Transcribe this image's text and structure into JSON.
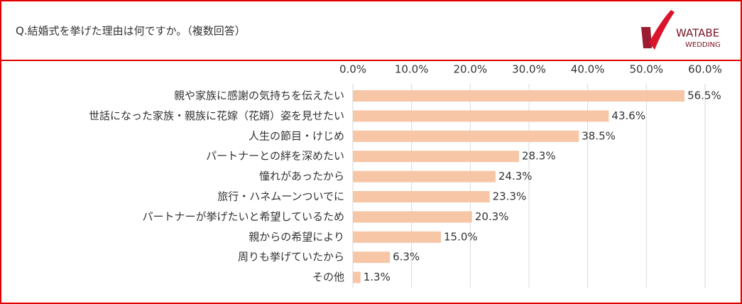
{
  "chart_data": {
    "type": "hbar",
    "title": "Q.結婚式を挙げた理由は何ですか。（複数回答）",
    "logo_lines": [
      "WATABE",
      "WEDDING"
    ],
    "categories": [
      "親や家族に感謝の気持ちを伝えたい",
      "世話になった家族・親族に花嫁（花婿）姿を見せたい",
      "人生の節目・けじめ",
      "パートナーとの絆を深めたい",
      "憧れがあったから",
      "旅行・ハネムーンついでに",
      "パートナーが挙げたいと希望しているため",
      "親からの希望により",
      "周りも挙げていたから",
      "その他"
    ],
    "values": [
      56.5,
      43.6,
      38.5,
      28.3,
      24.3,
      23.3,
      20.3,
      15.0,
      6.3,
      1.3
    ],
    "value_labels": [
      "56.5%",
      "43.6%",
      "38.5%",
      "28.3%",
      "24.3%",
      "23.3%",
      "20.3%",
      "15.0%",
      "6.3%",
      "1.3%"
    ],
    "color": "#f7c6a6",
    "xlim": [
      0,
      60
    ],
    "xticks": [
      {
        "value": 0,
        "label": "0.0%"
      },
      {
        "value": 10,
        "label": "10.0%"
      },
      {
        "value": 20,
        "label": "20.0%"
      },
      {
        "value": 30,
        "label": "30.0%"
      },
      {
        "value": 40,
        "label": "40.0%"
      },
      {
        "value": 50,
        "label": "50.0%"
      },
      {
        "value": 60,
        "label": "60.0%"
      }
    ],
    "grid": true
  }
}
